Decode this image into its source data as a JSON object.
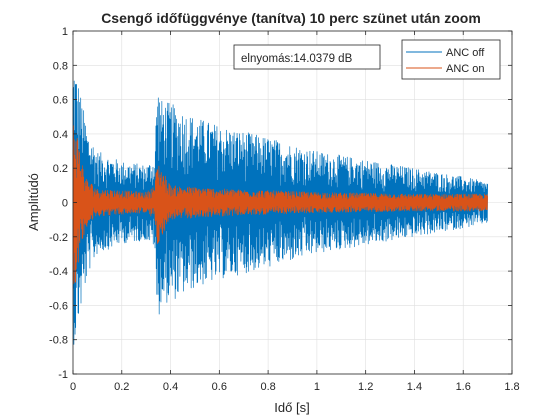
{
  "chart_data": {
    "type": "line",
    "title": "Csengő időfüggvénye (tanítva) 10 perc szünet után zoom",
    "xlabel": "Idő [s]",
    "ylabel": "Amplitúdó",
    "xlim": [
      0,
      1.8
    ],
    "ylim": [
      -1,
      1
    ],
    "xticks": [
      0,
      0.2,
      0.4,
      0.6,
      0.8,
      1,
      1.2,
      1.4,
      1.6,
      1.8
    ],
    "xtick_labels": [
      "0",
      "0.2",
      "0.4",
      "0.6",
      "0.8",
      "1",
      "1.2",
      "1.4",
      "1.6",
      "1.8"
    ],
    "yticks": [
      -1,
      -0.8,
      -0.6,
      -0.4,
      -0.2,
      0,
      0.2,
      0.4,
      0.6,
      0.8,
      1
    ],
    "ytick_labels": [
      "-1",
      "-0.8",
      "-0.6",
      "-0.4",
      "-0.2",
      "0",
      "0.2",
      "0.4",
      "0.6",
      "0.8",
      "1"
    ],
    "grid": true,
    "legend_position": "top-right",
    "annotation": "elnyomás:14.0379 dB",
    "series": [
      {
        "name": "ANC off",
        "color": "#0072BD",
        "envelope_t": [
          0,
          0.005,
          0.02,
          0.06,
          0.1,
          0.2,
          0.3,
          0.335,
          0.345,
          0.36,
          0.4,
          0.5,
          0.6,
          0.8,
          1.0,
          1.2,
          1.4,
          1.6,
          1.7
        ],
        "envelope_amp": [
          0.8,
          0.84,
          0.72,
          0.42,
          0.3,
          0.24,
          0.22,
          0.26,
          0.72,
          0.6,
          0.58,
          0.5,
          0.45,
          0.38,
          0.3,
          0.25,
          0.2,
          0.15,
          0.12
        ]
      },
      {
        "name": "ANC on",
        "color": "#D95319",
        "envelope_t": [
          0,
          0.005,
          0.02,
          0.05,
          0.1,
          0.2,
          0.3,
          0.335,
          0.345,
          0.4,
          0.6,
          1.0,
          1.4,
          1.7
        ],
        "envelope_amp": [
          0.5,
          0.52,
          0.38,
          0.15,
          0.08,
          0.07,
          0.06,
          0.1,
          0.25,
          0.1,
          0.08,
          0.06,
          0.05,
          0.05
        ]
      }
    ]
  }
}
